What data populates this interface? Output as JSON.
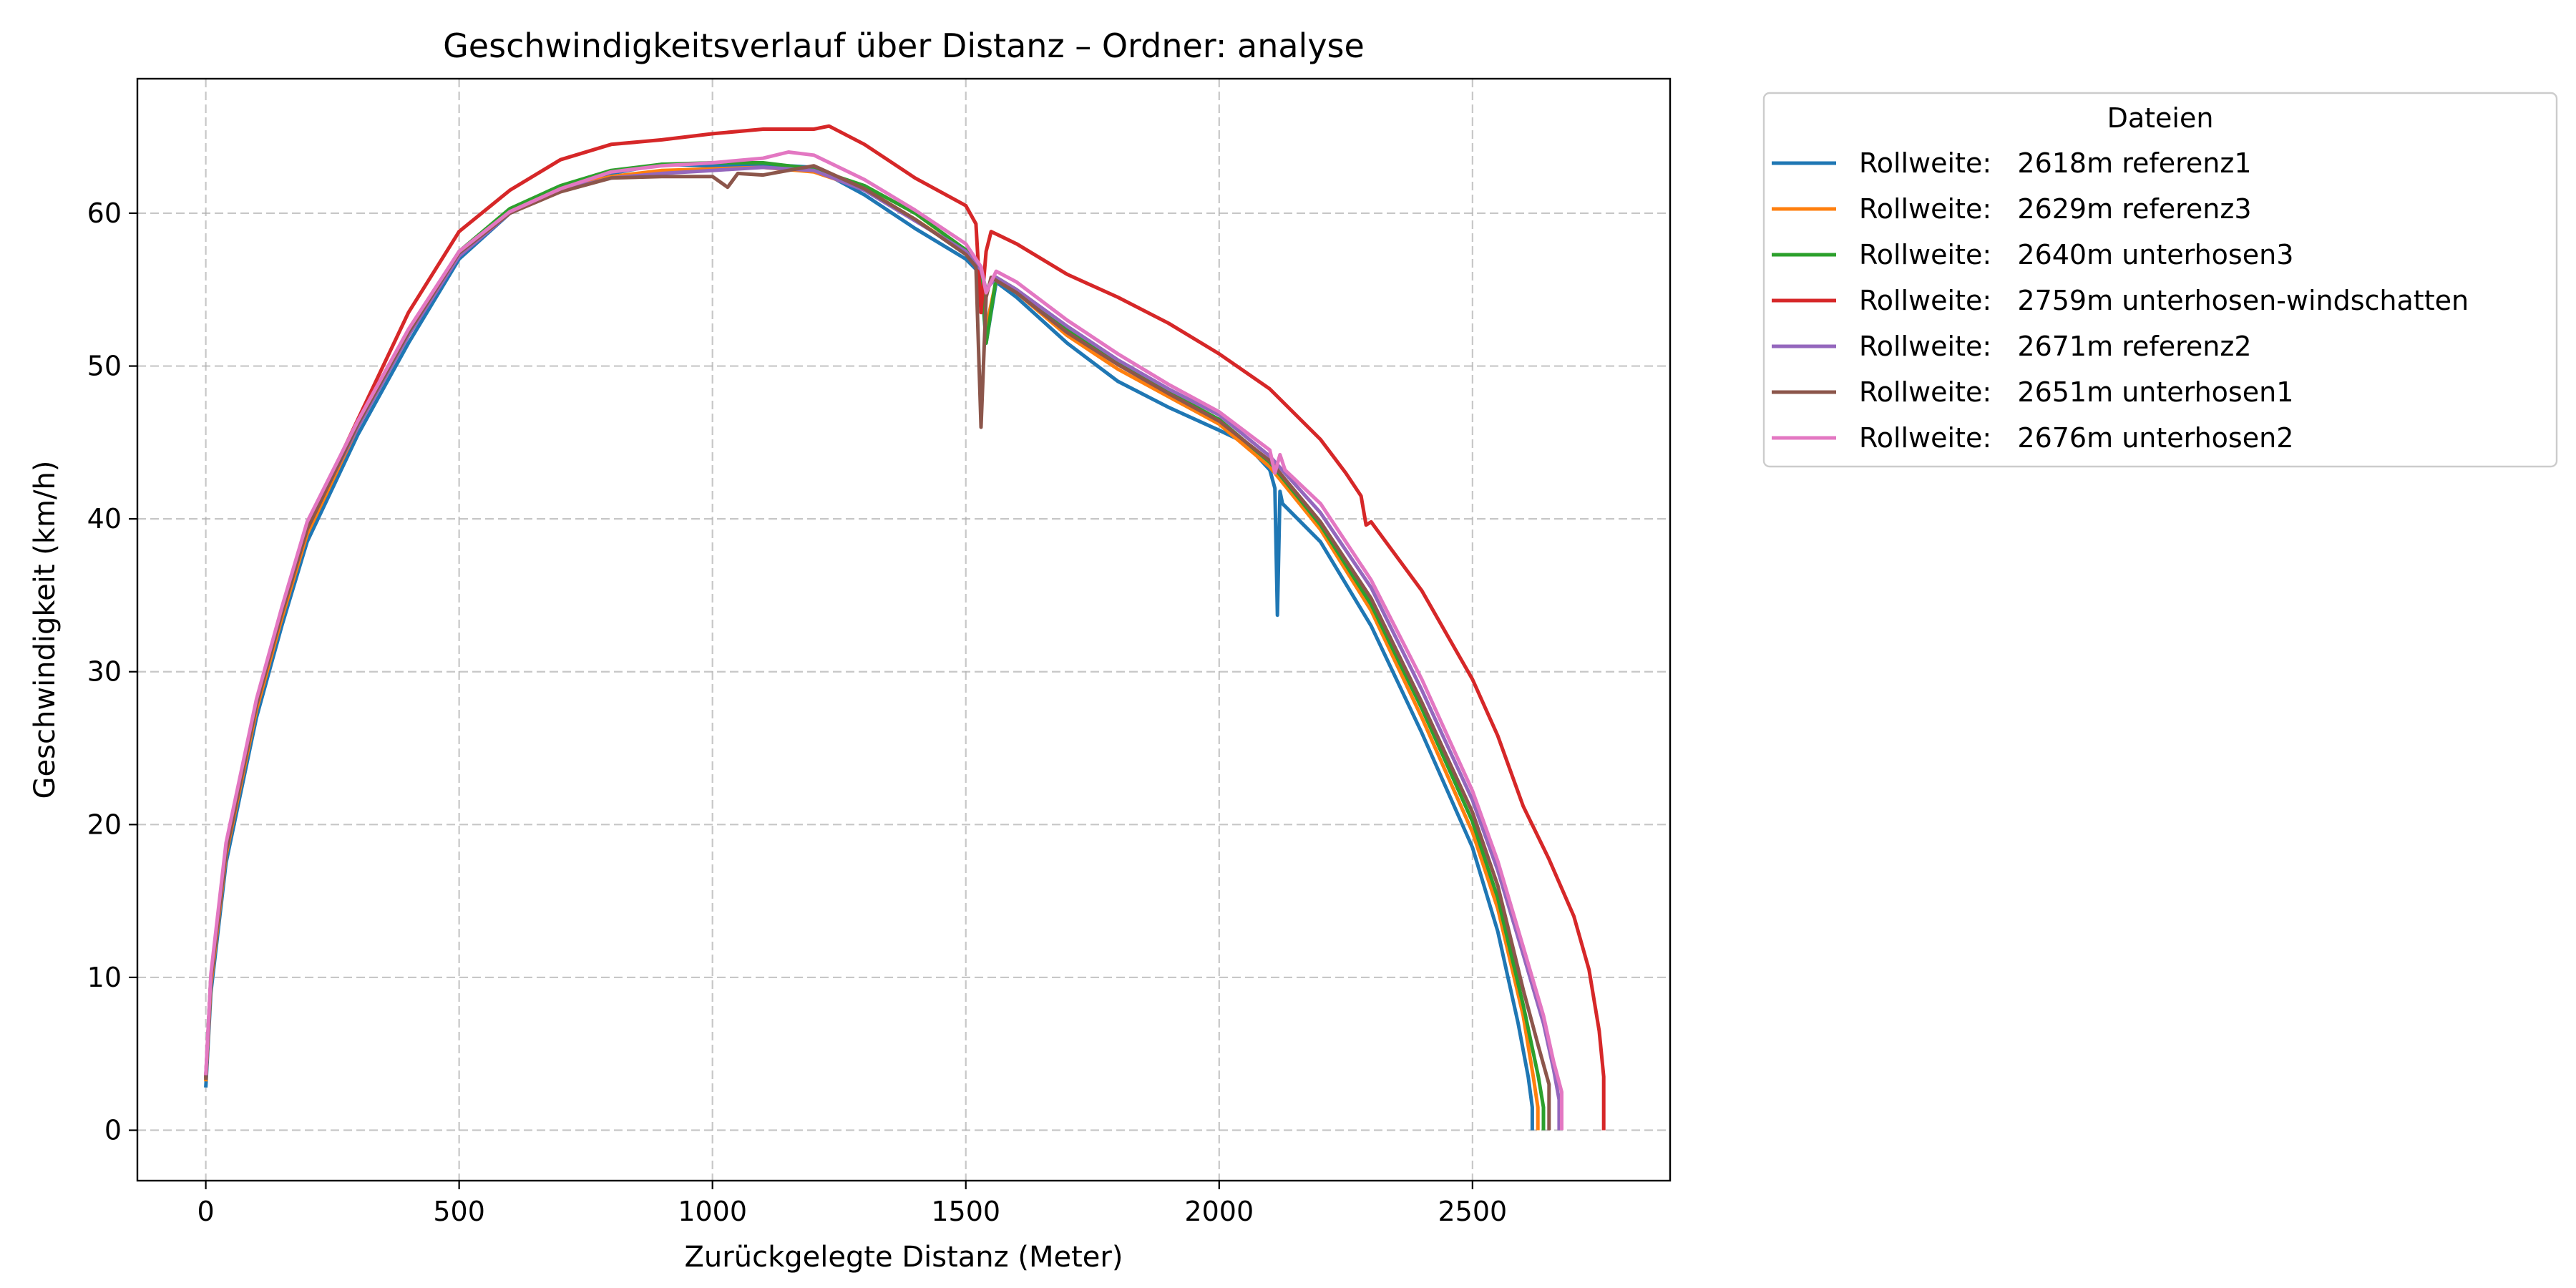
{
  "chart_data": {
    "type": "line",
    "title": "Geschwindigkeitsverlauf über Distanz – Ordner: analyse",
    "xlabel": "Zurückgelegte Distanz (Meter)",
    "ylabel": "Geschwindigkeit (km/h)",
    "xlim": [
      -135,
      2890
    ],
    "ylim": [
      -3.3,
      68.8
    ],
    "xticks": [
      0,
      500,
      1000,
      1500,
      2000,
      2500
    ],
    "yticks": [
      0,
      10,
      20,
      30,
      40,
      50,
      60
    ],
    "grid": true,
    "legend": {
      "title": "Dateien",
      "placement": "outside-top-right"
    },
    "series": [
      {
        "name": "Rollweite:   2618m referenz1",
        "color": "#1f77b4",
        "x": [
          0,
          10,
          40,
          100,
          150,
          200,
          300,
          400,
          500,
          600,
          700,
          800,
          900,
          1000,
          1100,
          1200,
          1300,
          1400,
          1500,
          1530,
          1540,
          1560,
          1600,
          1700,
          1800,
          1900,
          2000,
          2050,
          2100,
          2110,
          2115,
          2120,
          2125,
          2200,
          2300,
          2400,
          2500,
          2550,
          2590,
          2610,
          2618,
          2618
        ],
        "y": [
          2.8,
          9,
          17.5,
          27,
          33,
          38.5,
          45.5,
          51.5,
          57,
          60,
          61.5,
          62.6,
          63.2,
          63.1,
          63.2,
          63.0,
          61.2,
          59.0,
          57.0,
          56.0,
          51.5,
          55.5,
          54.5,
          51.5,
          49.0,
          47.3,
          45.8,
          45.0,
          43.2,
          42.0,
          33.7,
          41.8,
          41.0,
          38.5,
          33.0,
          26.0,
          18.5,
          13.0,
          7.0,
          3.5,
          1.5,
          0
        ]
      },
      {
        "name": "Rollweite:   2629m referenz3",
        "color": "#ff7f0e",
        "x": [
          0,
          10,
          40,
          100,
          150,
          200,
          300,
          400,
          500,
          600,
          700,
          800,
          900,
          1000,
          1100,
          1200,
          1300,
          1400,
          1500,
          1530,
          1540,
          1560,
          1600,
          1700,
          1800,
          1900,
          2000,
          2100,
          2200,
          2300,
          2400,
          2500,
          2550,
          2600,
          2620,
          2629,
          2629
        ],
        "y": [
          3.2,
          9.5,
          18,
          27.5,
          33.5,
          39,
          46,
          52,
          57.3,
          60.2,
          61.6,
          62.4,
          62.8,
          62.9,
          63.0,
          62.7,
          61.6,
          59.6,
          57.4,
          56.2,
          52.5,
          55.6,
          54.8,
          52.0,
          49.8,
          48.0,
          46.2,
          43.4,
          39.3,
          34.0,
          27.0,
          19.5,
          14.5,
          7.5,
          3.5,
          1.5,
          0
        ]
      },
      {
        "name": "Rollweite:   2640m unterhosen3",
        "color": "#2ca02c",
        "x": [
          0,
          10,
          40,
          100,
          150,
          200,
          300,
          400,
          500,
          600,
          700,
          800,
          900,
          1000,
          1100,
          1200,
          1300,
          1400,
          1500,
          1530,
          1540,
          1560,
          1600,
          1700,
          1800,
          1900,
          2000,
          2100,
          2200,
          2300,
          2400,
          2500,
          2550,
          2600,
          2630,
          2640,
          2640
        ],
        "y": [
          3.4,
          10,
          18.5,
          28,
          34,
          39.5,
          46.3,
          52.2,
          57.5,
          60.3,
          61.8,
          62.8,
          63.2,
          63.3,
          63.3,
          62.9,
          61.8,
          60.0,
          57.6,
          56.5,
          51.5,
          55.8,
          55.0,
          52.4,
          50.2,
          48.3,
          46.5,
          43.7,
          39.6,
          34.4,
          27.6,
          20.2,
          15.2,
          8.2,
          3.5,
          1.5,
          0
        ]
      },
      {
        "name": "Rollweite:   2759m unterhosen-windschatten",
        "color": "#d62728",
        "x": [
          0,
          10,
          40,
          100,
          150,
          200,
          300,
          400,
          500,
          600,
          700,
          800,
          900,
          1000,
          1100,
          1200,
          1230,
          1300,
          1400,
          1500,
          1520,
          1530,
          1540,
          1550,
          1600,
          1700,
          1800,
          1900,
          2000,
          2100,
          2200,
          2250,
          2280,
          2290,
          2300,
          2400,
          2500,
          2550,
          2600,
          2650,
          2700,
          2730,
          2750,
          2759,
          2759
        ],
        "y": [
          3.5,
          10,
          18.5,
          28,
          34,
          39.5,
          46.5,
          53.5,
          58.8,
          61.5,
          63.5,
          64.5,
          64.8,
          65.2,
          65.5,
          65.5,
          65.7,
          64.5,
          62.3,
          60.5,
          59.3,
          53.5,
          57.5,
          58.8,
          58.0,
          56.0,
          54.5,
          52.8,
          50.8,
          48.5,
          45.2,
          43.0,
          41.5,
          39.6,
          39.8,
          35.3,
          29.5,
          25.8,
          21.2,
          17.8,
          14.0,
          10.5,
          6.5,
          3.5,
          0
        ]
      },
      {
        "name": "Rollweite:   2671m referenz2",
        "color": "#9467bd",
        "x": [
          0,
          10,
          40,
          100,
          150,
          200,
          300,
          400,
          500,
          600,
          700,
          800,
          900,
          1000,
          1100,
          1200,
          1300,
          1400,
          1500,
          1530,
          1540,
          1560,
          1600,
          1700,
          1800,
          1900,
          2000,
          2100,
          2200,
          2300,
          2400,
          2500,
          2550,
          2600,
          2640,
          2660,
          2671,
          2671
        ],
        "y": [
          3.5,
          10,
          18.5,
          28,
          34,
          39.5,
          46,
          52,
          57.2,
          60.0,
          61.5,
          62.3,
          62.6,
          62.8,
          63.0,
          62.8,
          61.5,
          59.5,
          57.5,
          56.3,
          55.0,
          55.8,
          55.0,
          52.6,
          50.4,
          48.5,
          46.8,
          44.1,
          40.4,
          35.5,
          28.8,
          21.6,
          17.0,
          11.5,
          7.0,
          4.0,
          2.0,
          0
        ]
      },
      {
        "name": "Rollweite:   2651m unterhosen1",
        "color": "#8c564b",
        "x": [
          0,
          10,
          40,
          100,
          150,
          200,
          300,
          400,
          500,
          600,
          700,
          800,
          900,
          1000,
          1030,
          1050,
          1100,
          1200,
          1300,
          1400,
          1500,
          1520,
          1530,
          1540,
          1550,
          1600,
          1700,
          1800,
          1900,
          2000,
          2100,
          2200,
          2300,
          2400,
          2500,
          2550,
          2600,
          2630,
          2651,
          2651
        ],
        "y": [
          3.3,
          9.8,
          18.2,
          27.8,
          33.8,
          39.3,
          46.2,
          52.2,
          57.4,
          60.0,
          61.4,
          62.3,
          62.4,
          62.4,
          61.7,
          62.6,
          62.5,
          63.1,
          61.6,
          59.6,
          57.3,
          56.5,
          46.0,
          54.5,
          55.8,
          54.8,
          52.2,
          50.1,
          48.2,
          46.4,
          43.8,
          39.8,
          34.8,
          28.0,
          20.8,
          16.0,
          9.2,
          5.5,
          3.0,
          0
        ]
      },
      {
        "name": "Rollweite:   2676m unterhosen2",
        "color": "#e377c2",
        "x": [
          0,
          10,
          40,
          100,
          150,
          200,
          300,
          400,
          500,
          600,
          700,
          800,
          900,
          1000,
          1100,
          1150,
          1200,
          1300,
          1400,
          1500,
          1530,
          1540,
          1560,
          1600,
          1700,
          1800,
          1900,
          2000,
          2100,
          2110,
          2120,
          2130,
          2200,
          2300,
          2400,
          2500,
          2550,
          2600,
          2640,
          2660,
          2676,
          2676
        ],
        "y": [
          3.6,
          10.2,
          18.8,
          28.2,
          34.2,
          39.8,
          46.4,
          52.4,
          57.5,
          60.1,
          61.6,
          62.7,
          63.1,
          63.3,
          63.6,
          64.0,
          63.8,
          62.2,
          60.2,
          58.0,
          56.5,
          54.8,
          56.2,
          55.5,
          53.0,
          50.8,
          48.8,
          47.0,
          44.5,
          43.0,
          44.2,
          43.2,
          41.0,
          36.0,
          29.5,
          22.2,
          17.6,
          12.0,
          7.5,
          4.5,
          2.5,
          0
        ]
      }
    ]
  }
}
